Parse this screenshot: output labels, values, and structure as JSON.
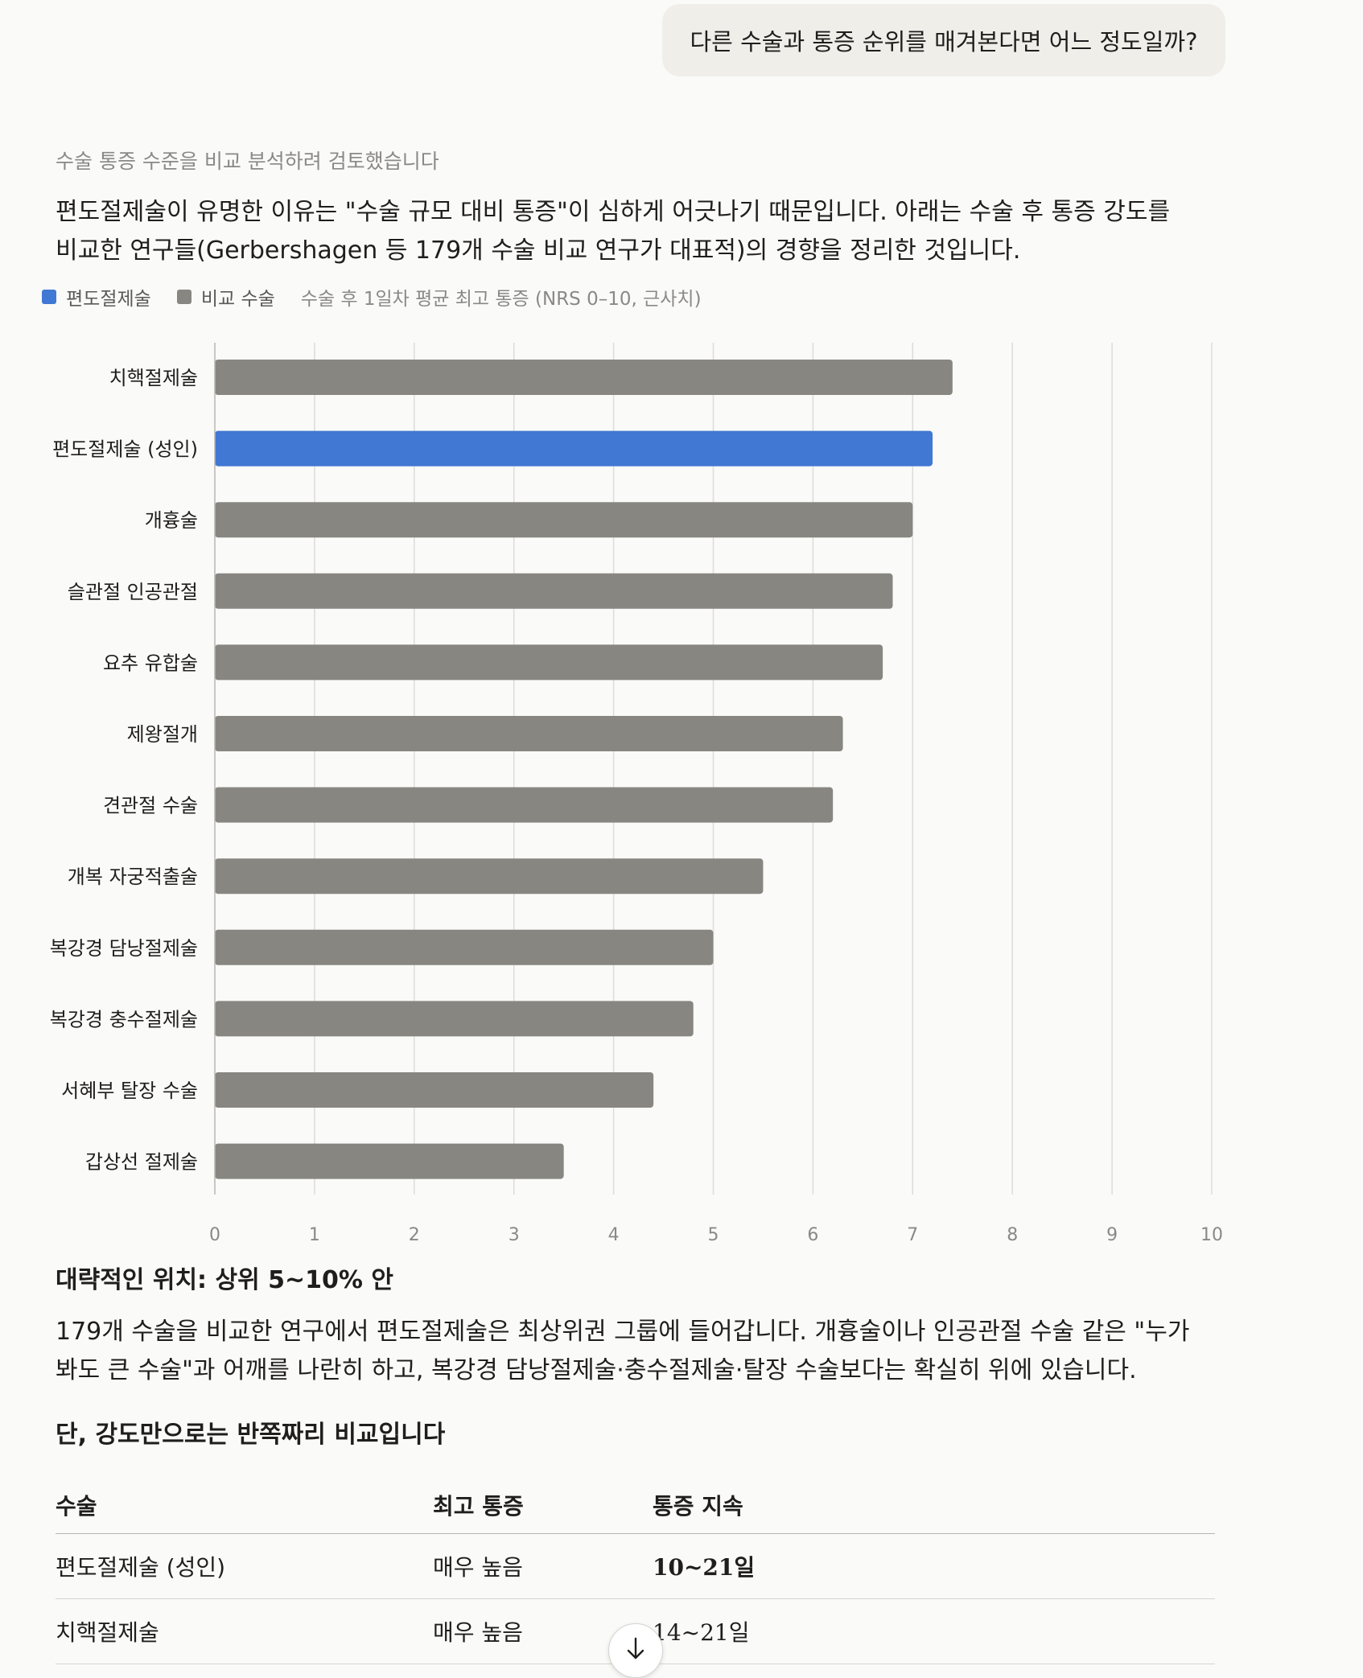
{
  "user_message": "다른 수술과 통증 순위를 매겨본다면 어느 정도일까?",
  "assistant": {
    "thinking_label": "수술 통증 수준을 비교 분석하려 검토했습니다",
    "intro": "편도절제술이 유명한 이유는 \"수술 규모 대비 통증\"이 심하게 어긋나기 때문입니다. 아래는 수술 후 통증 강도를 비교한 연구들(Gerbershagen 등 179개 수술 비교 연구가 대표적)의 경향을 정리한 것입니다.",
    "legend": {
      "highlight": "편도절제술",
      "compare": "비교 수술",
      "caption": "수술 후 1일차 평균 최고 통증 (NRS 0–10, 근사치)"
    },
    "section1_title": "대략적인 위치: 상위 5~10% 안",
    "section1_body": "179개 수술을 비교한 연구에서 편도절제술은 최상위권 그룹에 들어갑니다. 개흉술이나 인공관절 수술 같은 \"누가 봐도 큰 수술\"과 어깨를 나란히 하고, 복강경 담낭절제술·충수절제술·탈장 수술보다는 확실히 위에 있습니다.",
    "section2_title": "단, 강도만으로는 반쪽짜리 비교입니다",
    "table": {
      "headers": [
        "수술",
        "최고 통증",
        "통증 지속"
      ],
      "rows": [
        {
          "surgery": "편도절제술 (성인)",
          "peak": "매우 높음",
          "duration": "10~21일"
        },
        {
          "surgery": "치핵절제술",
          "peak": "매우 높음",
          "duration": "14~21일"
        }
      ]
    }
  },
  "colors": {
    "highlight": "#4178D4",
    "compare": "#878681",
    "grid": "#DDDCD8"
  },
  "scroll_icon": "arrow-down-icon",
  "chart_data": {
    "type": "bar",
    "orientation": "horizontal",
    "categories": [
      "치핵절제술",
      "편도절제술 (성인)",
      "개흉술",
      "슬관절 인공관절",
      "요추 유합술",
      "제왕절개",
      "견관절 수술",
      "개복 자궁적출술",
      "복강경 담낭절제술",
      "복강경 충수절제술",
      "서혜부 탈장 수술",
      "갑상선 절제술"
    ],
    "values": [
      7.4,
      7.2,
      7.0,
      6.8,
      6.7,
      6.3,
      6.2,
      5.5,
      5.0,
      4.8,
      4.4,
      3.5
    ],
    "highlight_index": 1,
    "xlim": [
      0,
      10
    ],
    "xticks": [
      "0",
      "1",
      "2",
      "3",
      "4",
      "5",
      "6",
      "7",
      "8",
      "9",
      "10"
    ],
    "grid": true,
    "legend_position": "top-left"
  }
}
